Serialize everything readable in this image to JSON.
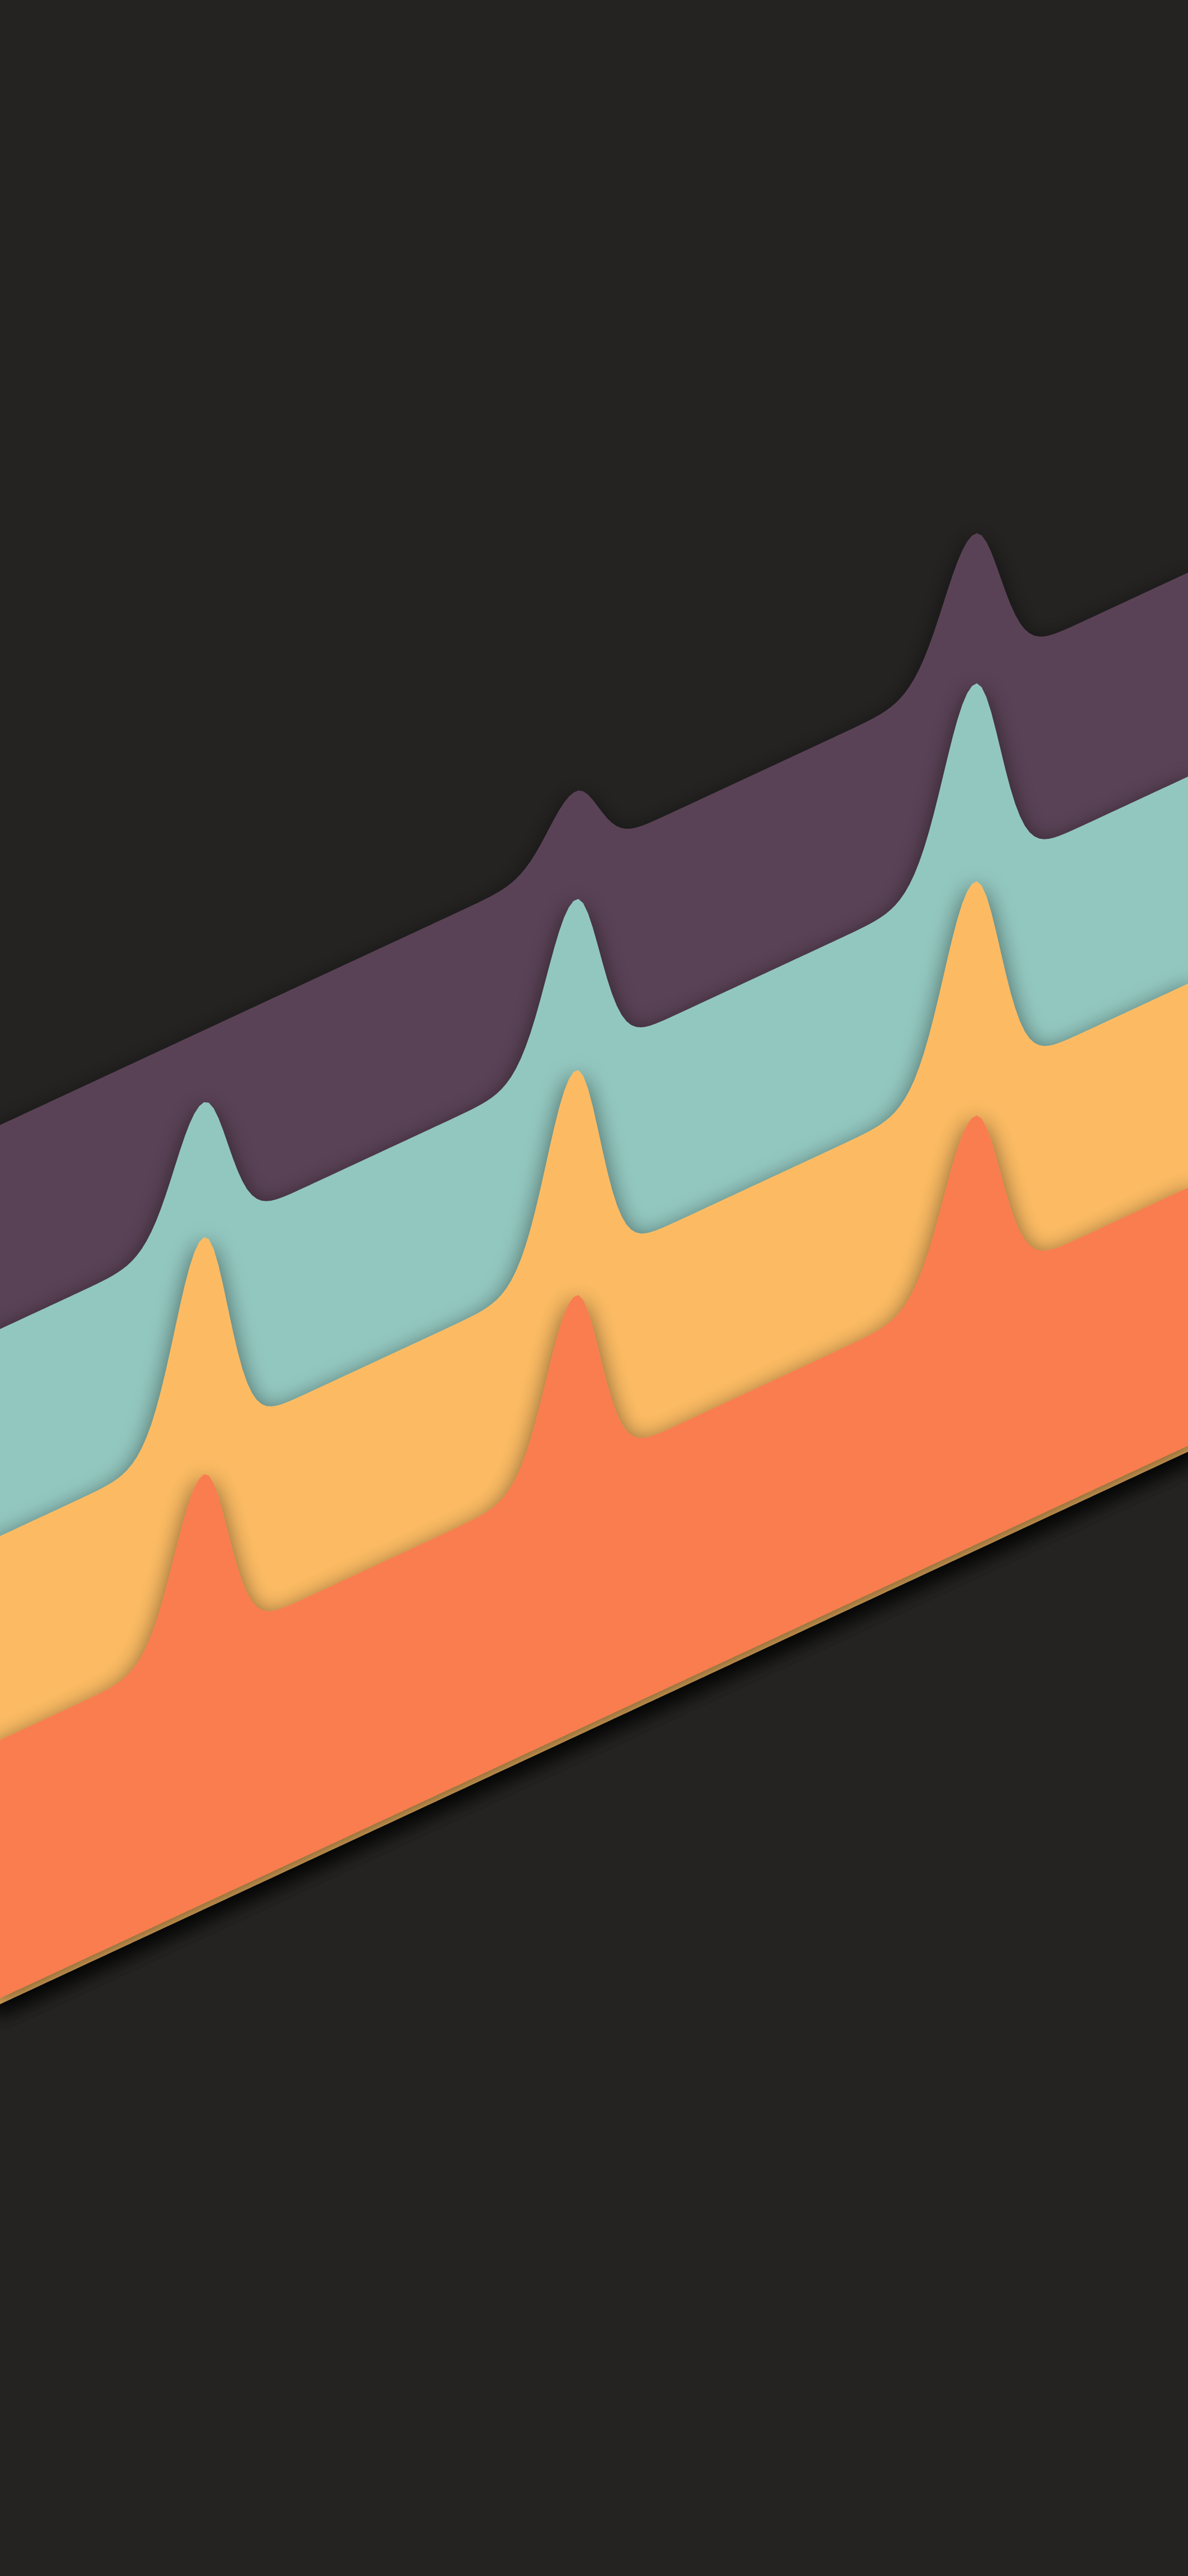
{
  "wallpaper": {
    "background_color": "#242322",
    "stripes": [
      {
        "id": "stripe-purple",
        "color": "#5a4356"
      },
      {
        "id": "stripe-teal",
        "color": "#92c7bf"
      },
      {
        "id": "stripe-yellow",
        "color": "#fcbb63"
      },
      {
        "id": "stripe-orange",
        "color": "#f97d50"
      }
    ],
    "shadow_color": "#000000"
  }
}
